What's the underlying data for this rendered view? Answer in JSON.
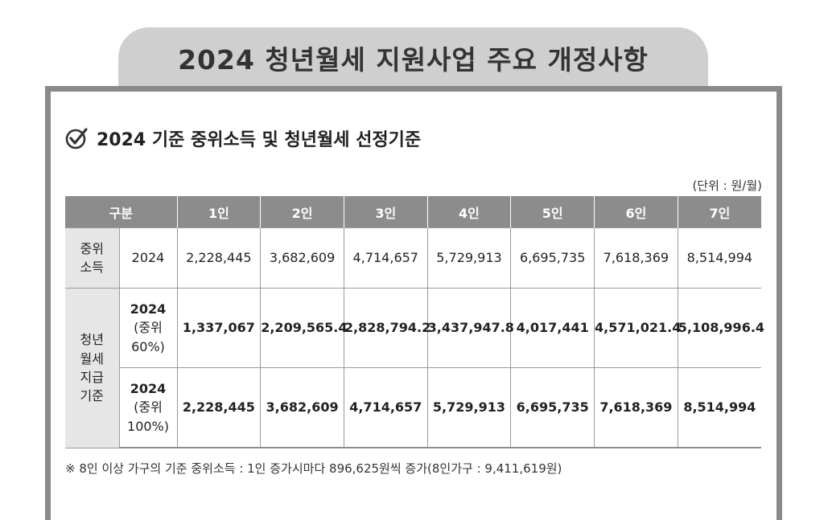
{
  "title": "2024 청년월세 지원사업 주요 개정사항",
  "section": {
    "heading": "2024 기준 중위소득 및 청년월세 선정기준"
  },
  "unit_note": "(단위 : 원/월)",
  "table": {
    "header": [
      "구분",
      "1인",
      "2인",
      "3인",
      "4인",
      "5인",
      "6인",
      "7인"
    ],
    "median_income": {
      "group": "중위\n소득",
      "year": "2024",
      "values": [
        "2,228,445",
        "3,682,609",
        "4,714,657",
        "5,729,913",
        "6,695,735",
        "7,618,369",
        "8,514,994"
      ]
    },
    "rent_support": {
      "group": "청년\n월세\n지급\n기준",
      "row60": {
        "year": "2024",
        "ratio": "(중위\n60%)",
        "values": [
          "1,337,067",
          "2,209,565.4",
          "2,828,794.2",
          "3,437,947.8",
          "4,017,441",
          "4,571,021.4",
          "5,108,996.4"
        ]
      },
      "row100": {
        "year": "2024",
        "ratio": "(중위\n100%)",
        "values": [
          "2,228,445",
          "3,682,609",
          "4,714,657",
          "5,729,913",
          "6,695,735",
          "7,618,369",
          "8,514,994"
        ]
      }
    }
  },
  "footnote": "※ 8인 이상 가구의 기준 중위소득 : 1인 증가시마다 896,625원씩 증가(8인가구 : 9,411,619원)"
}
